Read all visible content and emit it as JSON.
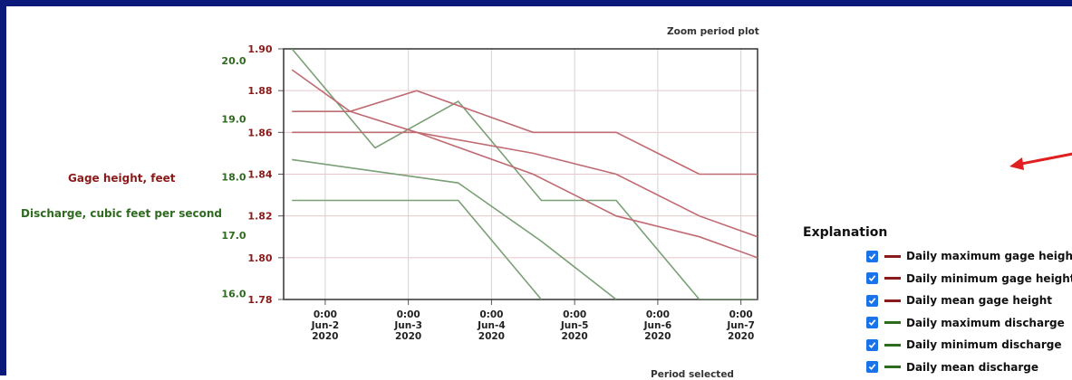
{
  "labels": {
    "gage_axis": "Gage height, feet",
    "discharge_axis": "Discharge, cubic feet per second",
    "zoom": "Zoom period plot",
    "bottom_partial": "Period selected"
  },
  "legend": {
    "title": "Explanation",
    "items": [
      {
        "label": "Daily maximum gage height",
        "color": "#8b1a1a",
        "checked": true
      },
      {
        "label": "Daily minimum gage height",
        "color": "#8b1a1a",
        "checked": true
      },
      {
        "label": "Daily mean gage height",
        "color": "#8b1a1a",
        "checked": true
      },
      {
        "label": "Daily maximum discharge",
        "color": "#2e6b1f",
        "checked": true
      },
      {
        "label": "Daily minimum discharge",
        "color": "#2e6b1f",
        "checked": true
      },
      {
        "label": "Daily mean discharge",
        "color": "#2e6b1f",
        "checked": true
      }
    ]
  },
  "colors": {
    "gage": "#c06a72",
    "gage_text": "#8b1a1a",
    "discharge": "#7aa076",
    "discharge_text": "#2e6b1f",
    "arrow": "#e02020",
    "checkbox": "#1a73e8"
  },
  "chart_data": {
    "type": "line",
    "x_ticks": [
      {
        "x": 1,
        "time": "0:00",
        "date": "Jun-2",
        "year": "2020"
      },
      {
        "x": 2,
        "time": "0:00",
        "date": "Jun-3",
        "year": "2020"
      },
      {
        "x": 3,
        "time": "0:00",
        "date": "Jun-4",
        "year": "2020"
      },
      {
        "x": 4,
        "time": "0:00",
        "date": "Jun-5",
        "year": "2020"
      },
      {
        "x": 5,
        "time": "0:00",
        "date": "Jun-6",
        "year": "2020"
      },
      {
        "x": 6,
        "time": "0:00",
        "date": "Jun-7",
        "year": "2020"
      }
    ],
    "xlim": [
      0.5,
      6.2
    ],
    "y_left": {
      "ticks": [
        "1.90",
        "1.88",
        "1.86",
        "1.84",
        "1.82",
        "1.80",
        "1.78"
      ],
      "lim": [
        1.78,
        1.9
      ]
    },
    "y_right": {
      "ticks": [
        "20.0",
        "19.0",
        "18.0",
        "17.0",
        "16.0"
      ],
      "lim": [
        15.9,
        20.2
      ]
    },
    "grid": true,
    "series_gage": [
      {
        "name": "Daily maximum gage height",
        "points": [
          [
            0.6,
            1.87
          ],
          [
            1.3,
            1.87
          ],
          [
            2.1,
            1.88
          ],
          [
            3.5,
            1.86
          ],
          [
            4.5,
            1.86
          ],
          [
            5.5,
            1.84
          ],
          [
            6.2,
            1.84
          ]
        ]
      },
      {
        "name": "Daily minimum gage height",
        "points": [
          [
            0.6,
            1.86
          ],
          [
            2.1,
            1.86
          ],
          [
            3.5,
            1.84
          ],
          [
            4.5,
            1.82
          ],
          [
            5.5,
            1.81
          ],
          [
            6.2,
            1.8
          ]
        ]
      },
      {
        "name": "Daily mean gage height",
        "points": [
          [
            0.6,
            1.89
          ],
          [
            1.3,
            1.87
          ],
          [
            2.1,
            1.86
          ],
          [
            3.5,
            1.85
          ],
          [
            4.5,
            1.84
          ],
          [
            5.5,
            1.82
          ],
          [
            6.2,
            1.81
          ]
        ]
      }
    ],
    "series_discharge": [
      {
        "name": "Daily maximum discharge",
        "points": [
          [
            0.6,
            20.2
          ],
          [
            1.6,
            18.5
          ],
          [
            2.6,
            19.3
          ],
          [
            3.6,
            17.6
          ],
          [
            4.5,
            17.6
          ],
          [
            5.5,
            15.9
          ],
          [
            6.2,
            15.9
          ]
        ]
      },
      {
        "name": "Daily minimum discharge",
        "points": [
          [
            0.6,
            17.6
          ],
          [
            2.6,
            17.6
          ],
          [
            3.6,
            15.9
          ]
        ]
      },
      {
        "name": "Daily mean discharge",
        "points": [
          [
            0.6,
            18.3
          ],
          [
            2.6,
            17.9
          ],
          [
            3.6,
            16.9
          ],
          [
            4.5,
            15.9
          ]
        ]
      }
    ]
  }
}
